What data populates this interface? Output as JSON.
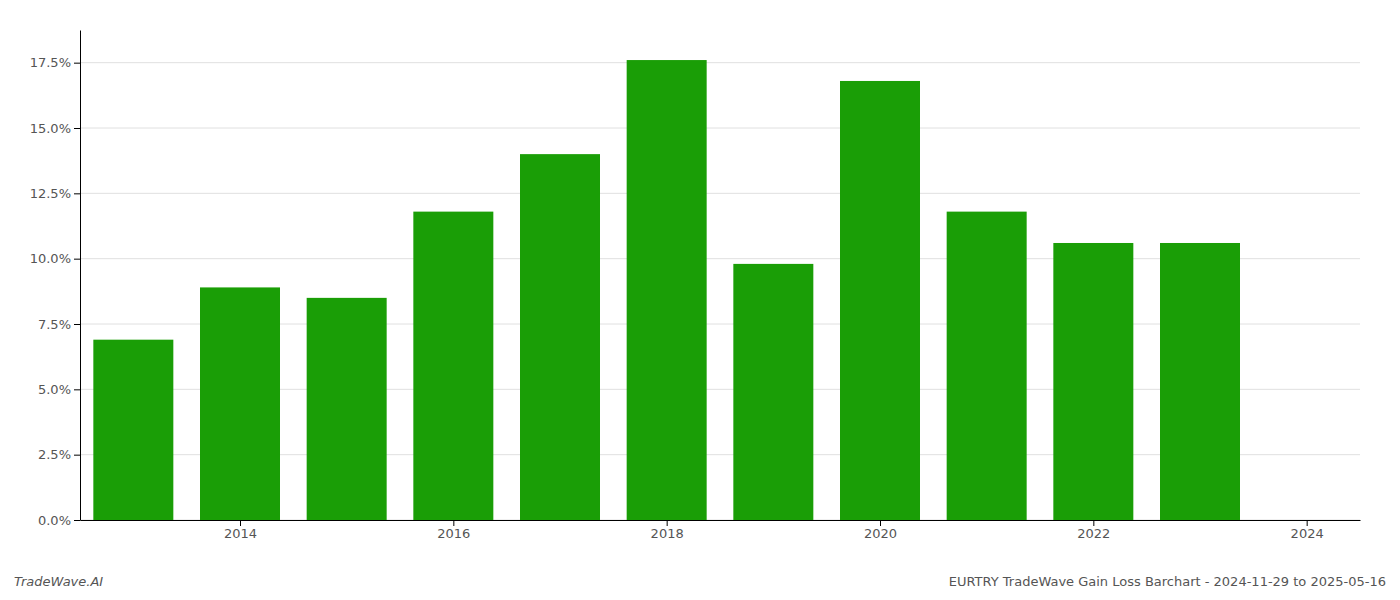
{
  "chart_data": {
    "type": "bar",
    "x": [
      2013,
      2014,
      2015,
      2016,
      2017,
      2018,
      2019,
      2020,
      2021,
      2022,
      2023
    ],
    "values": [
      0.069,
      0.089,
      0.085,
      0.118,
      0.14,
      0.176,
      0.098,
      0.168,
      0.118,
      0.106,
      0.106
    ],
    "color": "#1a9e06",
    "xlim": [
      2012.5,
      2024.5
    ],
    "xticks": [
      2014,
      2016,
      2018,
      2020,
      2022,
      2024
    ],
    "ylim": [
      0,
      0.1875
    ],
    "yticks": [
      {
        "value": 0.0,
        "label": "0.0%"
      },
      {
        "value": 0.025,
        "label": "2.5%"
      },
      {
        "value": 0.05,
        "label": "5.0%"
      },
      {
        "value": 0.075,
        "label": "7.5%"
      },
      {
        "value": 0.1,
        "label": "10.0%"
      },
      {
        "value": 0.125,
        "label": "12.5%"
      },
      {
        "value": 0.15,
        "label": "15.0%"
      },
      {
        "value": 0.175,
        "label": "17.5%"
      }
    ],
    "grid": true,
    "annotations": [
      "TradeWave.AI",
      "EURTRY TradeWave Gain Loss Barchart - 2024-11-29 to 2025-05-16"
    ]
  }
}
